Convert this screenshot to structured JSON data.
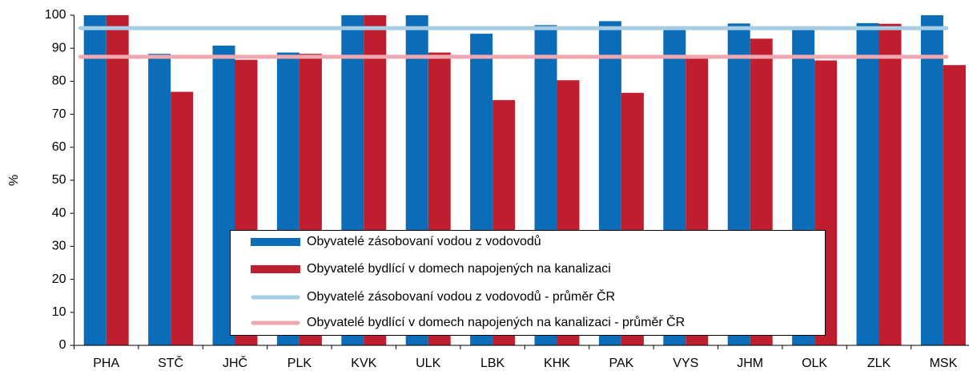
{
  "chart_data": {
    "type": "bar",
    "y_label": "%",
    "categories": [
      "PHA",
      "STČ",
      "JHČ",
      "PLK",
      "KVK",
      "ULK",
      "LBK",
      "KHK",
      "PAK",
      "VYS",
      "JHM",
      "OLK",
      "ZLK",
      "MSK"
    ],
    "series": [
      {
        "name": "Obyvatelé zásobovaní vodou z vodovodů",
        "color": "#0b6db8",
        "values": [
          100,
          88.3,
          90.8,
          88.7,
          100,
          100,
          94.4,
          97,
          98.2,
          95.5,
          97.5,
          95.5,
          97.6,
          100
        ]
      },
      {
        "name": "Obyvatelé bydlící v domech napojených na kanalizaci",
        "color": "#be1e2d",
        "values": [
          100,
          76.8,
          86.5,
          88.3,
          100,
          88.7,
          74.3,
          80.3,
          76.5,
          87.3,
          92.9,
          86.3,
          97.4,
          84.9
        ]
      },
      {
        "name": "Obyvatelé zásobovaní vodou z vodovodů - průměr ČR",
        "color": "#a6cde3",
        "type": "line",
        "value": 96.1
      },
      {
        "name": "Obyvatelé bydlící v domech napojených na kanalizaci - průměr ČR",
        "color": "#f0a8b0",
        "type": "line",
        "value": 87.4
      }
    ],
    "ylim": [
      0,
      100
    ],
    "yticks": [
      0,
      10,
      20,
      30,
      40,
      50,
      60,
      70,
      80,
      90,
      100
    ]
  }
}
